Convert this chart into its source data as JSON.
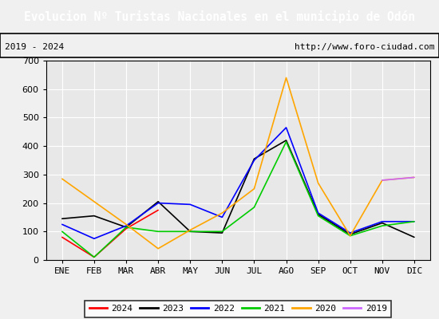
{
  "title": "Evolucion Nº Turistas Nacionales en el municipio de Odón",
  "subtitle_left": "2019 - 2024",
  "subtitle_right": "http://www.foro-ciudad.com",
  "title_bg": "#4c7fc4",
  "title_color": "white",
  "months": [
    "ENE",
    "FEB",
    "MAR",
    "ABR",
    "MAY",
    "JUN",
    "JUL",
    "AGO",
    "SEP",
    "OCT",
    "NOV",
    "DIC"
  ],
  "ylim": [
    0,
    700
  ],
  "yticks": [
    0,
    100,
    200,
    300,
    400,
    500,
    600,
    700
  ],
  "series": {
    "2024": {
      "color": "red",
      "data": [
        80,
        10,
        110,
        175,
        null,
        null,
        null,
        null,
        null,
        null,
        null,
        null
      ]
    },
    "2023": {
      "color": "black",
      "data": [
        145,
        155,
        115,
        205,
        100,
        95,
        355,
        420,
        160,
        90,
        130,
        80
      ]
    },
    "2022": {
      "color": "blue",
      "data": [
        125,
        75,
        120,
        200,
        195,
        150,
        350,
        465,
        165,
        95,
        135,
        135
      ]
    },
    "2021": {
      "color": "#00cc00",
      "data": [
        100,
        10,
        115,
        100,
        100,
        100,
        185,
        415,
        155,
        85,
        120,
        135
      ]
    },
    "2020": {
      "color": "orange",
      "data": [
        285,
        205,
        125,
        40,
        105,
        165,
        250,
        640,
        270,
        85,
        280,
        290
      ]
    },
    "2019": {
      "color": "#cc66ff",
      "data": [
        null,
        null,
        null,
        null,
        null,
        null,
        null,
        null,
        null,
        null,
        280,
        290
      ]
    }
  },
  "legend_order": [
    "2024",
    "2023",
    "2022",
    "2021",
    "2020",
    "2019"
  ],
  "bg_color": "#f0f0f0",
  "plot_bg": "#e8e8e8",
  "grid_color": "white",
  "title_fontsize": 10.5,
  "subtitle_fontsize": 8,
  "tick_fontsize": 8,
  "legend_fontsize": 8
}
